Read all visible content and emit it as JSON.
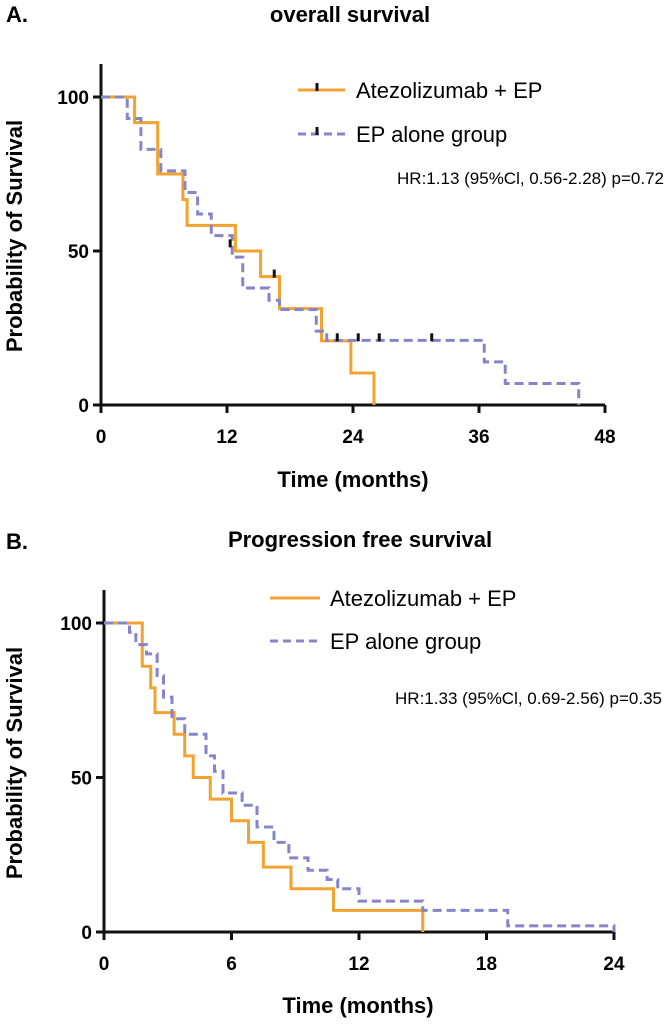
{
  "colors": {
    "treatment": "#f2a230",
    "control": "#8585c8",
    "axis": "#111111"
  },
  "chart_data": [
    {
      "type": "line",
      "panel_label": "A.",
      "title": "overall survival",
      "xlabel": "Time (months)",
      "ylabel": "Probability of Survival",
      "xlim": [
        0,
        48
      ],
      "ylim": [
        0,
        100
      ],
      "xticks": [
        0,
        12,
        24,
        36,
        48
      ],
      "yticks": [
        0,
        50,
        100
      ],
      "legend": {
        "position": "top-right",
        "entries": [
          "Atezolizumab + EP",
          "EP alone group"
        ]
      },
      "annotation": "HR:1.13 (95%Cl, 0.56-2.28) p=0.72",
      "series": [
        {
          "name": "Atezolizumab + EP",
          "style": "solid",
          "color_key": "treatment",
          "steps": [
            [
              0,
              100
            ],
            [
              3.2,
              91.7
            ],
            [
              5.4,
              75
            ],
            [
              7.8,
              66.7
            ],
            [
              8.2,
              58.3
            ],
            [
              12.8,
              50
            ],
            [
              15.2,
              41.7
            ],
            [
              17,
              31.3
            ],
            [
              21,
              20.8
            ],
            [
              23.8,
              10.4
            ],
            [
              26,
              0
            ]
          ],
          "end": 26,
          "censors": [
            [
              16.5,
              41.7
            ]
          ]
        },
        {
          "name": "EP alone group",
          "style": "dashed",
          "color_key": "control",
          "steps": [
            [
              0,
              100
            ],
            [
              2.5,
              93
            ],
            [
              3.8,
              83
            ],
            [
              5.7,
              76
            ],
            [
              8,
              69
            ],
            [
              9.2,
              62
            ],
            [
              10.5,
              55
            ],
            [
              12.5,
              48
            ],
            [
              13.5,
              38
            ],
            [
              16,
              34
            ],
            [
              17,
              31
            ],
            [
              20.5,
              24
            ],
            [
              21.5,
              21
            ],
            [
              36.5,
              14
            ],
            [
              38.5,
              7
            ]
          ],
          "end": 45.5,
          "censors": [
            [
              12.3,
              51.5
            ],
            [
              22.5,
              21
            ],
            [
              24.5,
              21
            ],
            [
              26.5,
              21
            ],
            [
              31.5,
              21
            ]
          ]
        }
      ]
    },
    {
      "type": "line",
      "panel_label": "B.",
      "title": "Progression free survival",
      "xlabel": "Time (months)",
      "ylabel": "Probability of Survival",
      "xlim": [
        0,
        24
      ],
      "ylim": [
        0,
        100
      ],
      "xticks": [
        0,
        6,
        12,
        18,
        24
      ],
      "yticks": [
        0,
        50,
        100
      ],
      "legend": {
        "position": "top-right",
        "entries": [
          "Atezolizumab + EP",
          "EP alone group"
        ]
      },
      "annotation": "HR:1.33 (95%Cl, 0.69-2.56) p=0.35",
      "series": [
        {
          "name": "Atezolizumab + EP",
          "style": "solid",
          "color_key": "treatment",
          "steps": [
            [
              0,
              100
            ],
            [
              1.8,
              86
            ],
            [
              2.2,
              79
            ],
            [
              2.4,
              71
            ],
            [
              3.3,
              64
            ],
            [
              3.8,
              57
            ],
            [
              4.2,
              50
            ],
            [
              5,
              43
            ],
            [
              6,
              36
            ],
            [
              6.8,
              29
            ],
            [
              7.5,
              21
            ],
            [
              8.8,
              14
            ],
            [
              10.8,
              7
            ],
            [
              15,
              0
            ]
          ],
          "end": 15,
          "censors": []
        },
        {
          "name": "EP alone group",
          "style": "dashed",
          "color_key": "control",
          "steps": [
            [
              0,
              100
            ],
            [
              1.2,
              97
            ],
            [
              1.5,
              93
            ],
            [
              2,
              90
            ],
            [
              2.5,
              83
            ],
            [
              2.8,
              76
            ],
            [
              3.2,
              69
            ],
            [
              3.8,
              64
            ],
            [
              4.8,
              57
            ],
            [
              5.2,
              52
            ],
            [
              5.6,
              45
            ],
            [
              6.5,
              41
            ],
            [
              7.2,
              34
            ],
            [
              8,
              29
            ],
            [
              8.7,
              24
            ],
            [
              9.6,
              20
            ],
            [
              10.5,
              17
            ],
            [
              11,
              14
            ],
            [
              12,
              10
            ],
            [
              15,
              7
            ],
            [
              19,
              2
            ]
          ],
          "end": 24,
          "censors": []
        }
      ]
    }
  ]
}
